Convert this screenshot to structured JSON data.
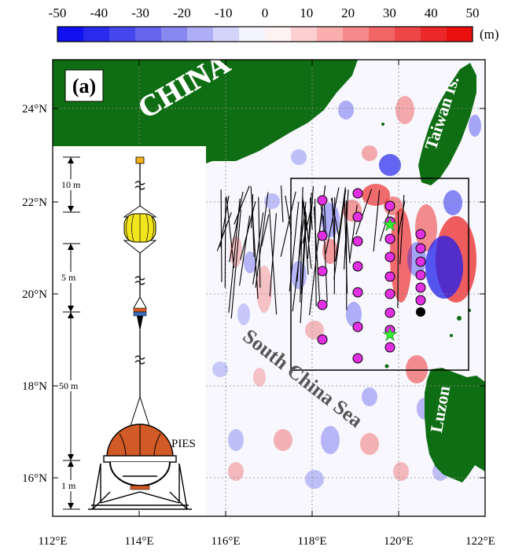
{
  "colorbar": {
    "ticks": [
      "-50",
      "-40",
      "-30",
      "-20",
      "-10",
      "0",
      "10",
      "20",
      "30",
      "40",
      "50"
    ],
    "unit": "(m)",
    "colors": [
      "#1010f0",
      "#2a2aee",
      "#4646ee",
      "#6464ee",
      "#8888f0",
      "#aeaef6",
      "#d4d4fa",
      "#f4f4fe",
      "#fef2f2",
      "#fcd0d0",
      "#faaeae",
      "#f68a8a",
      "#f26666",
      "#ee4646",
      "#ec2828",
      "#ea1010"
    ]
  },
  "map": {
    "panel_label": "(a)",
    "labels": {
      "china": "CHINA",
      "taiwan": "Taiwan Is.",
      "luzon": "Luzon",
      "sea": "South China Sea"
    },
    "x_ticks": [
      "112°E",
      "114°E",
      "116°E",
      "118°E",
      "120°E",
      "122°E"
    ],
    "y_ticks": [
      "16°N",
      "18°N",
      "20°N",
      "22°N",
      "24°N"
    ],
    "land_color": "#0f6e13",
    "marker_color": "#e22fe2",
    "star_color": "#33ee33"
  },
  "mooring": {
    "device": "PIES",
    "segments": [
      "10 m",
      "5 m",
      "50 m",
      "1 m"
    ],
    "float_color": "#f3e51d",
    "ies_color": "#d15a26"
  }
}
